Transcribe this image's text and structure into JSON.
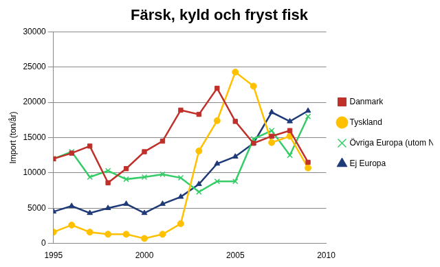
{
  "chart_data": {
    "type": "line",
    "title": "Färsk, kyld och fryst fisk",
    "y_label": "Import (ton/år)",
    "x": [
      1995,
      1996,
      1997,
      1998,
      1999,
      2000,
      2001,
      2002,
      2003,
      2004,
      2005,
      2006,
      2007,
      2008,
      2009
    ],
    "series": [
      {
        "name": "Danmark",
        "color": "#c0302b",
        "marker": "square",
        "values": [
          12000,
          12800,
          13800,
          8600,
          10600,
          13000,
          14500,
          18900,
          18300,
          22000,
          17300,
          14200,
          15200,
          16000,
          11500
        ]
      },
      {
        "name": "Tyskland",
        "color": "#ffc000",
        "marker": "circle",
        "values": [
          1600,
          2600,
          1600,
          1300,
          1300,
          700,
          1300,
          2800,
          13100,
          17400,
          24300,
          22300,
          14300,
          15200,
          10700
        ]
      },
      {
        "name": "Övriga Europa (utom Norge)",
        "color": "#33cc66",
        "marker": "x",
        "values": [
          12000,
          13000,
          9400,
          10300,
          9100,
          9400,
          9800,
          9300,
          7300,
          8800,
          8800,
          14800,
          16000,
          12500,
          18000
        ]
      },
      {
        "name": "Ej Europa",
        "color": "#1f3a78",
        "marker": "triangle",
        "values": [
          4500,
          5300,
          4300,
          5000,
          5600,
          4300,
          5600,
          6600,
          8400,
          11300,
          12300,
          14200,
          18600,
          17300,
          18800
        ]
      }
    ],
    "xlim": [
      1995,
      2010
    ],
    "xticks": [
      1995,
      2000,
      2005,
      2010
    ],
    "ylim": [
      0,
      30000
    ],
    "yticks": [
      0,
      5000,
      10000,
      15000,
      20000,
      25000,
      30000
    ],
    "grid": "y",
    "legend": "right"
  }
}
